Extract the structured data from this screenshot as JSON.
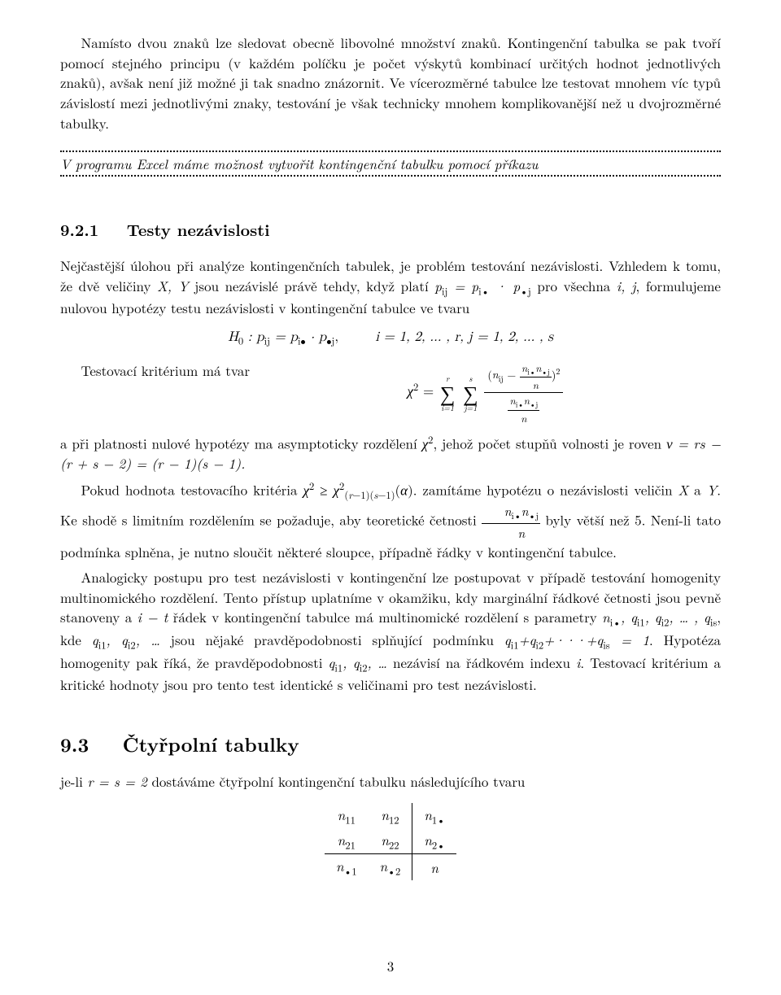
{
  "p1": "Namísto dvou znaků lze sledovat obecně libovolné množství znaků. Kontingenční tabulka se pak tvoří pomocí stejného principu (v každém políčku je počet výskytů kombinací určitých hodnot jednotlivých znaků), avšak není již možné ji tak snadno znázornit. Ve vícerozměrné tabulce lze testovat mnohem víc typů závislostí mezi jednotlivými znaky, testování je však technicky mnohem komplikovanější než u dvojrozměrné tabulky.",
  "excel_line": "V programu Excel máme možnost vytvořit kontingenční tabulku pomocí příkazu",
  "sec921_num": "9.2.1",
  "sec921_title": "Testy nezávislosti",
  "p921a_pre": "Nejčastější úlohou při analýze kontingenčních tabulek, je problém testování nezávislosti. Vzhledem k tomu, že dvě veličiny ",
  "p921a_mid": " jsou nezávislé právě tehdy, když platí ",
  "p921a_mid2": " pro všechna ",
  "p921a_end": ", formulujeme nulovou hypotézy testu nezávislosti v kontingenční tabulce ve tvaru",
  "h0_left": "H",
  "ranges": "i = 1, 2, … , r,  j = 1, 2, … , s",
  "tvar_label": "Testovací kritérium má tvar",
  "p921c_a": "a při platnosti nulové hypotézy ma asymptoticky rozdělení ",
  "p921c_b": ", jehož počet stupňů volnosti je roven ",
  "nu_expr": "ν = rs − (r + s − 2) = (r − 1)(s − 1).",
  "p921d_a": "Pokud hodnota testovacího kritéria ",
  "p921d_b": ". zamítáme hypotézu o nezávislosti veličin ",
  "p921d_c": ". Ke shodě s limitním rozdělením se požaduje, aby teoretické četnosti ",
  "p921d_d": " byly větší než 5. Není-li tato podmínka splněna, je nutno sloučit některé sloupce, případně řádky v kontingenční tabulce.",
  "p921e_a": "Analogicky postupu pro test nezávislosti v kontingenční lze postupovat v případě testování homogenity multinomického rozdělení. Tento přístup uplatníme v okamžiku, kdy marginální řádkové četnosti jsou pevně stanoveny a ",
  "p921e_b": " řádek v kontingenční tabulce má multinomické rozdělení s parametry ",
  "p921e_c": ", kde ",
  "p921e_d": " jsou nějaké pravděpodobnosti splňující podmínku ",
  "p921e_e": ". Hypotéza homogenity pak říká, že pravděpodobnosti ",
  "p921e_f": " nezávisí na řádkovém indexu ",
  "p921e_g": ". Testovací kritérium a kritické hodnoty jsou pro tento test identické s veličinami pro test nezávislosti.",
  "sec93_num": "9.3",
  "sec93_title": "Čtyřpolní tabulky",
  "p93_a": "je-li ",
  "p93_b": " dostáváme čtyřpolní kontingenční tabulku následujícího tvaru",
  "table": {
    "r1c1": "n",
    "r1c2": "n",
    "r1c3": "n",
    "r2c1": "n",
    "r2c2": "n",
    "r2c3": "n",
    "r3c1": "n",
    "r3c2": "n",
    "r3c3": "n"
  },
  "pageno": "3"
}
